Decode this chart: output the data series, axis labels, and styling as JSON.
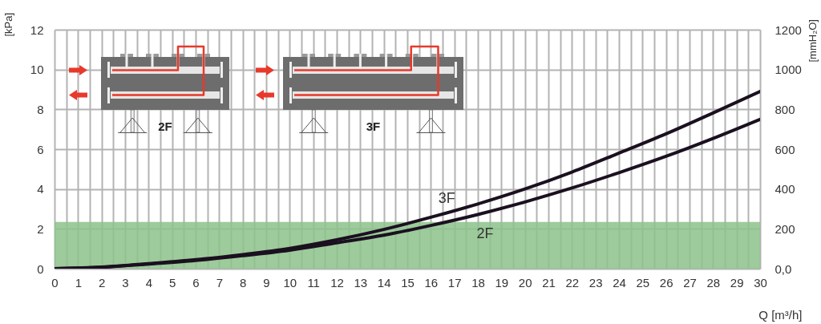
{
  "chart_data": {
    "type": "line",
    "x": [
      0,
      2,
      4,
      6,
      8,
      10,
      12,
      14,
      16,
      18,
      20,
      22,
      24,
      26,
      28,
      30
    ],
    "series": [
      {
        "name": "3F",
        "color": "#1b1020",
        "values": [
          0,
          0.08,
          0.25,
          0.45,
          0.71,
          1.02,
          1.45,
          1.97,
          2.58,
          3.25,
          4.0,
          4.85,
          5.8,
          6.77,
          7.82,
          8.9
        ]
      },
      {
        "name": "2F",
        "color": "#1b1020",
        "values": [
          0,
          0.07,
          0.23,
          0.41,
          0.65,
          0.93,
          1.3,
          1.68,
          2.17,
          2.72,
          3.35,
          4.05,
          4.82,
          5.64,
          6.54,
          7.5
        ]
      }
    ],
    "xlabel": "Q [m³/h]",
    "ylabel": "[kPa]",
    "y2label": "[mmH₂O]",
    "xlim": [
      0,
      30
    ],
    "xticks": [
      0,
      {
        "value": 0.5,
        "label": null
      },
      1,
      {
        "value": 1.5,
        "label": null
      },
      2,
      {
        "value": 2.5,
        "label": null
      },
      3,
      {
        "value": 3.5,
        "label": null
      },
      4,
      {
        "value": 4.5,
        "label": null
      },
      5,
      {
        "value": 5.5,
        "label": null
      },
      6,
      {
        "value": 6.5,
        "label": null
      },
      7,
      {
        "value": 7.5,
        "label": null
      },
      8,
      {
        "value": 8.5,
        "label": null
      },
      9,
      {
        "value": 9.5,
        "label": null
      },
      10,
      {
        "value": 10.5,
        "label": null
      },
      11,
      {
        "value": 11.5,
        "label": null
      },
      12,
      {
        "value": 12.5,
        "label": null
      },
      13,
      {
        "value": 13.5,
        "label": null
      },
      14,
      {
        "value": 14.5,
        "label": null
      },
      15,
      {
        "value": 15.5,
        "label": null
      },
      16,
      {
        "value": 16.5,
        "label": null
      },
      17,
      {
        "value": 17.5,
        "label": null
      },
      18,
      {
        "value": 18.5,
        "label": null
      },
      19,
      {
        "value": 19.5,
        "label": null
      },
      20,
      {
        "value": 20.5,
        "label": null
      },
      21,
      {
        "value": 21.5,
        "label": null
      },
      22,
      {
        "value": 22.5,
        "label": null
      },
      23,
      {
        "value": 23.5,
        "label": null
      },
      24,
      {
        "value": 24.5,
        "label": null
      },
      25,
      {
        "value": 25.5,
        "label": null
      },
      26,
      {
        "value": 26.5,
        "label": null
      },
      27,
      {
        "value": 27.5,
        "label": null
      },
      28,
      {
        "value": 28.5,
        "label": null
      },
      29,
      {
        "value": 29.5,
        "label": null
      },
      30
    ],
    "ylim": [
      0,
      12
    ],
    "yticks": [
      0,
      2,
      4,
      6,
      8,
      10,
      12
    ],
    "y2lim": [
      0,
      1200
    ],
    "y2ticks": [
      {
        "value": 0,
        "label": "0,0"
      },
      200,
      400,
      600,
      800,
      1000,
      1200
    ],
    "bands": [
      {
        "axis": "y",
        "from": 0,
        "to": 2.35,
        "color": "#8cc28a"
      }
    ],
    "annotations": [
      "2F",
      "3F"
    ],
    "grid": true,
    "legend": false,
    "marker": "none",
    "line_style": "solid"
  }
}
